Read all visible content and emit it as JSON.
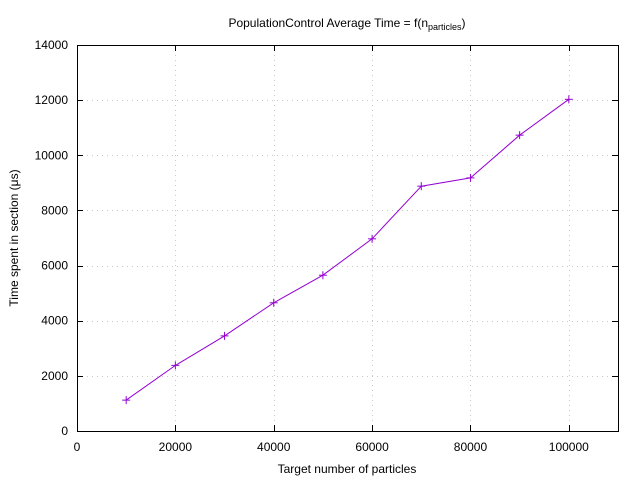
{
  "chart_data": {
    "type": "line",
    "title_main": "PopulationControl Average Time = f(n",
    "title_sub": "particles",
    "title_close": ")",
    "xlabel": "Target number of particles",
    "ylabel": "Time spent in section (μs)",
    "xlim": [
      0,
      110000
    ],
    "ylim": [
      0,
      14000
    ],
    "xticks": [
      0,
      20000,
      40000,
      60000,
      80000,
      100000
    ],
    "yticks": [
      0,
      2000,
      4000,
      6000,
      8000,
      10000,
      12000,
      14000
    ],
    "grid": true,
    "series_color": "#9400d3",
    "series": [
      {
        "x": [
          10000,
          20000,
          30000,
          40000,
          50000,
          60000,
          70000,
          80000,
          90000,
          100000
        ],
        "values": [
          1120,
          2380,
          3450,
          4650,
          5650,
          6970,
          8880,
          9180,
          10730,
          12030
        ]
      }
    ]
  }
}
